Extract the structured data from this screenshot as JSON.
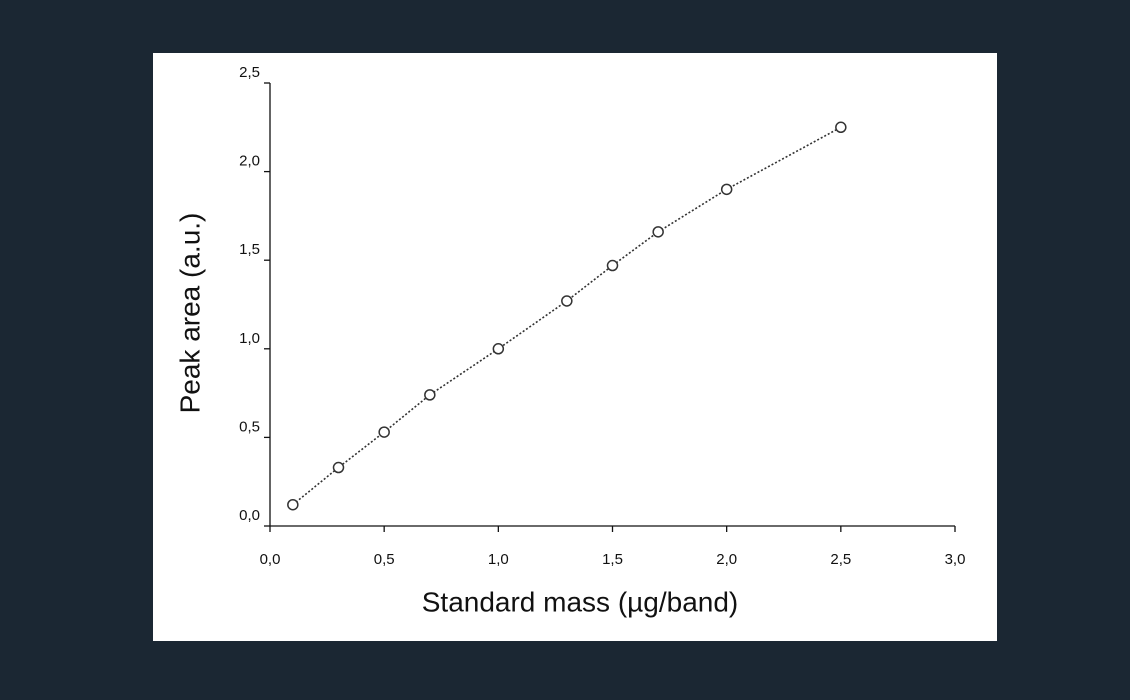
{
  "chart_data": {
    "type": "line",
    "xlabel": "Standard mass (µg/band)",
    "ylabel": "Peak area (a.u.)",
    "x": [
      0.1,
      0.3,
      0.5,
      0.7,
      1.0,
      1.3,
      1.5,
      1.7,
      2.0,
      2.5
    ],
    "values": [
      0.12,
      0.33,
      0.53,
      0.74,
      1.0,
      1.27,
      1.47,
      1.66,
      1.9,
      2.25
    ],
    "color": "#333333",
    "marker": "circle",
    "linestyle": "dotted",
    "xlim": [
      0,
      3
    ],
    "ylim": [
      0,
      2.5
    ],
    "xticks": [
      {
        "value": 0,
        "label": "0,0"
      },
      {
        "value": 0.5,
        "label": "0,5"
      },
      {
        "value": 1,
        "label": "1,0"
      },
      {
        "value": 1.5,
        "label": "1,5"
      },
      {
        "value": 2,
        "label": "2,0"
      },
      {
        "value": 2.5,
        "label": "2,5"
      },
      {
        "value": 3,
        "label": "3,0"
      }
    ],
    "yticks": [
      {
        "value": 0,
        "label": "0,0"
      },
      {
        "value": 0.5,
        "label": "0,5"
      },
      {
        "value": 1,
        "label": "1,0"
      },
      {
        "value": 1.5,
        "label": "1,5"
      },
      {
        "value": 2,
        "label": "2,0"
      },
      {
        "value": 2.5,
        "label": "2,5"
      }
    ],
    "grid": false
  }
}
